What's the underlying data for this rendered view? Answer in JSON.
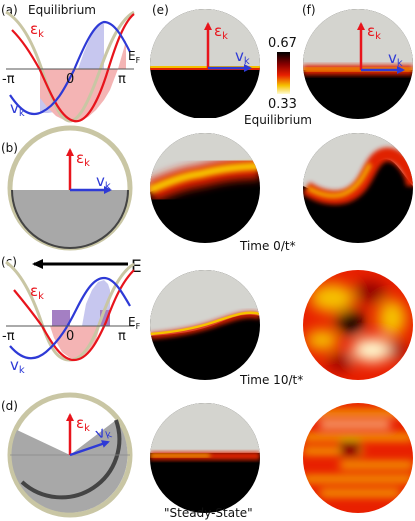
{
  "panel_labels": {
    "a": "(a)",
    "b": "(b)",
    "c": "(c)",
    "d": "(d)",
    "e": "(e)",
    "f": "(f)"
  },
  "symbols": {
    "epsilon": "ε",
    "k": "k",
    "v": "v",
    "E": "E",
    "EF": "E",
    "F": "F"
  },
  "axis_ticks": {
    "neg_pi": "-π",
    "zero": "0",
    "pi": "π"
  },
  "texts": {
    "equilibrium_top": "Equilibrium",
    "equilibrium_cbar": "Equilibrium",
    "time0": "Time 0/t*",
    "time10": "Time 10/t*",
    "steady": "\"Steady-State\""
  },
  "colorbar": {
    "max": "0.67",
    "min": "0.33"
  },
  "colors": {
    "epsilon": "#e8141c",
    "velocity": "#2e3ad6",
    "cosine": "#c9c6a4",
    "disc_bg": "#d4d4cf",
    "filled": "#a8a8a8"
  }
}
